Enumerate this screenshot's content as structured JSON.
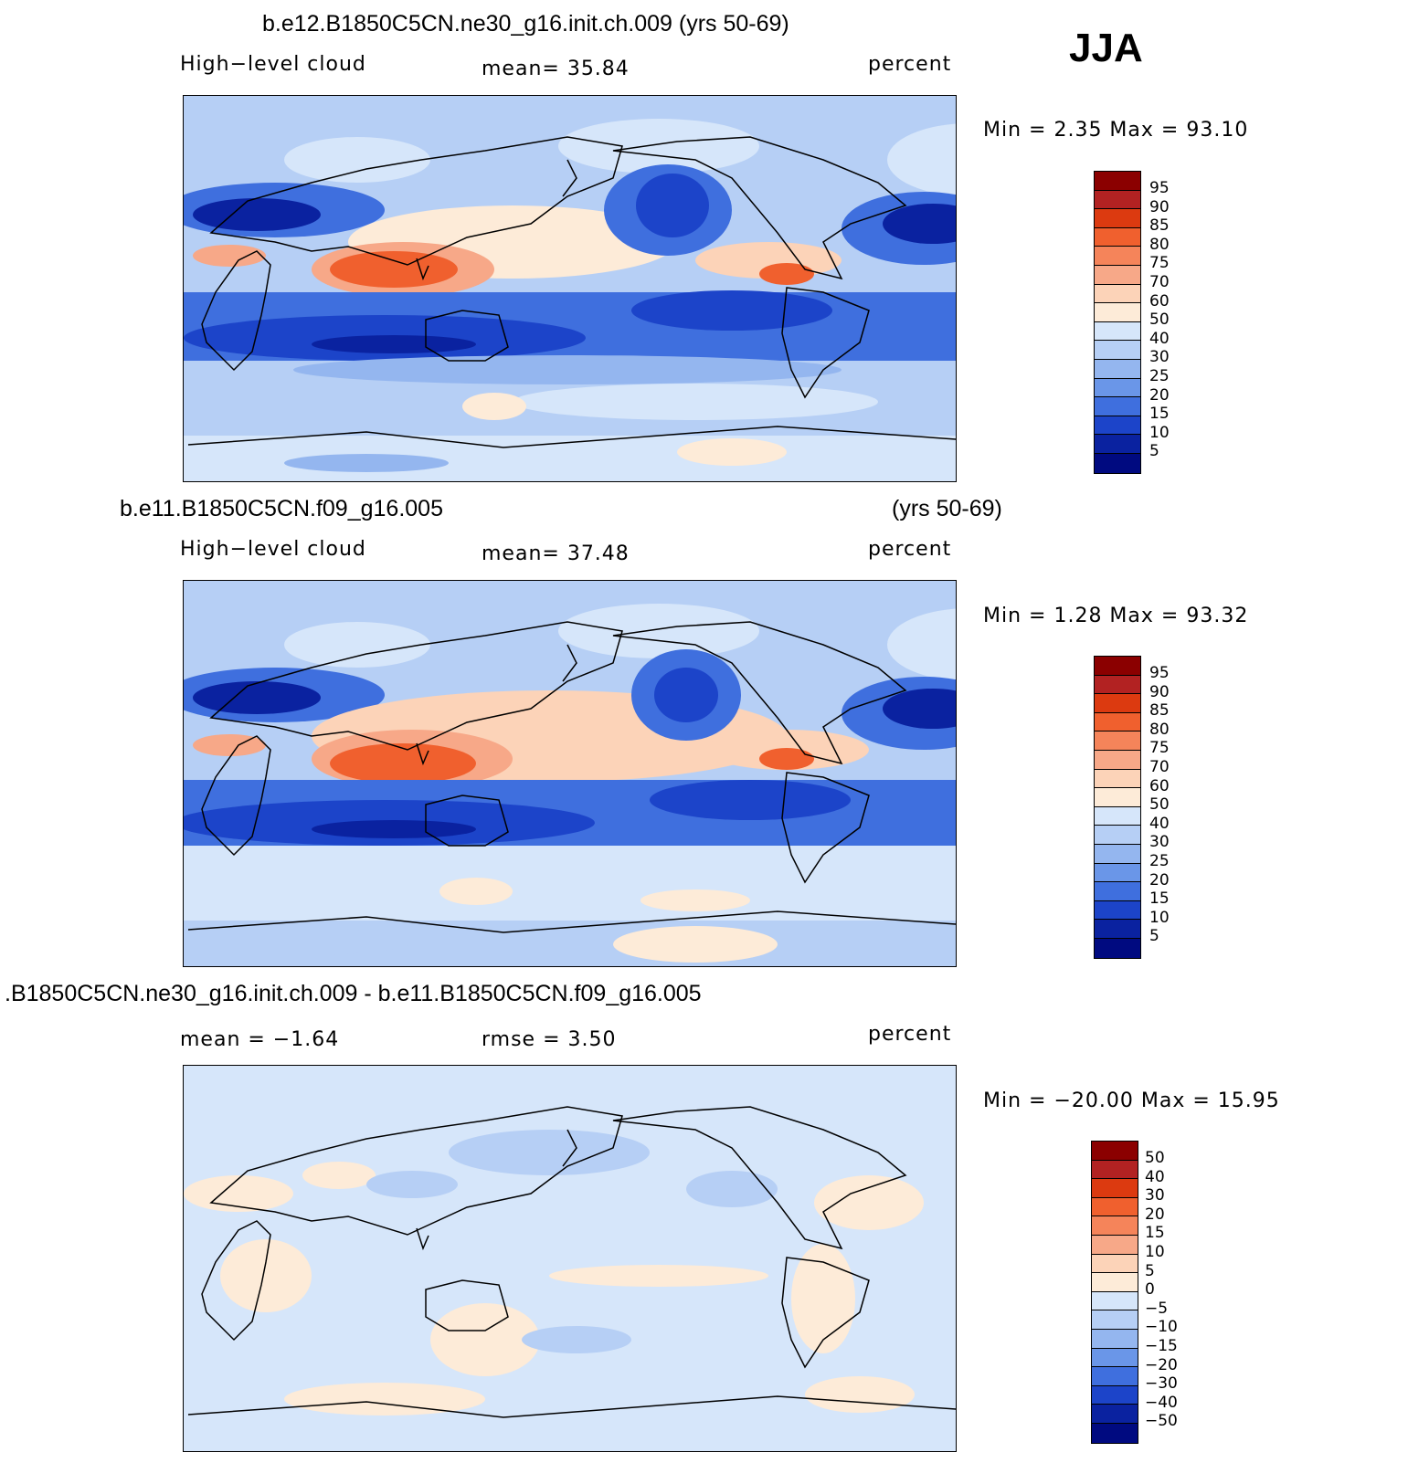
{
  "season": "JJA",
  "panels": [
    {
      "title": "b.e12.B1850C5CN.ne30_g16.init.ch.009 (yrs 50-69)",
      "left_label": "High−level cloud",
      "center_label": "mean=   35.84",
      "right_label": "percent",
      "minmax": "Min =    2.35 Max =   93.10",
      "colorbar_labels": [
        "95",
        "90",
        "85",
        "80",
        "75",
        "70",
        "60",
        "50",
        "40",
        "30",
        "25",
        "20",
        "15",
        "10",
        "5"
      ]
    },
    {
      "title_left": "b.e11.B1850C5CN.f09_g16.005",
      "title_right": "(yrs 50-69)",
      "left_label": "High−level cloud",
      "center_label": "mean=   37.48",
      "right_label": "percent",
      "minmax": "Min =    1.28 Max =   93.32",
      "colorbar_labels": [
        "95",
        "90",
        "85",
        "80",
        "75",
        "70",
        "60",
        "50",
        "40",
        "30",
        "25",
        "20",
        "15",
        "10",
        "5"
      ]
    },
    {
      "title": ".B1850C5CN.ne30_g16.init.ch.009 - b.e11.B1850C5CN.f09_g16.005",
      "left_label": "mean =   −1.64",
      "center_label": "rmse =    3.50",
      "right_label": "percent",
      "minmax": "Min = −20.00 Max =   15.95",
      "colorbar_labels": [
        "50",
        "40",
        "30",
        "20",
        "15",
        "10",
        "5",
        "0",
        "−5",
        "−10",
        "−15",
        "−20",
        "−30",
        "−40",
        "−50"
      ]
    }
  ],
  "chart_data": [
    {
      "type": "heatmap",
      "title": "b.e12.B1850C5CN.ne30_g16.init.ch.009 (yrs 50-69)",
      "variable": "High-level cloud",
      "units": "percent",
      "mean": 35.84,
      "min": 2.35,
      "max": 93.1,
      "levels": [
        5,
        10,
        15,
        20,
        25,
        30,
        40,
        50,
        60,
        70,
        75,
        80,
        85,
        90,
        95
      ]
    },
    {
      "type": "heatmap",
      "title": "b.e11.B1850C5CN.f09_g16.005 (yrs 50-69)",
      "variable": "High-level cloud",
      "units": "percent",
      "mean": 37.48,
      "min": 1.28,
      "max": 93.32,
      "levels": [
        5,
        10,
        15,
        20,
        25,
        30,
        40,
        50,
        60,
        70,
        75,
        80,
        85,
        90,
        95
      ]
    },
    {
      "type": "heatmap",
      "title": ".B1850C5CN.ne30_g16.init.ch.009 - b.e11.B1850C5CN.f09_g16.005",
      "units": "percent",
      "mean": -1.64,
      "rmse": 3.5,
      "min": -20.0,
      "max": 15.95,
      "levels": [
        -50,
        -40,
        -30,
        -20,
        -15,
        -10,
        -5,
        0,
        5,
        10,
        15,
        20,
        30,
        40,
        50
      ]
    }
  ],
  "palette": [
    "#8b0000",
    "#b22222",
    "#dc3a10",
    "#f0602e",
    "#f5845a",
    "#f7a888",
    "#fcd3b8",
    "#fdebd8",
    "#d6e6fa",
    "#b6cff5",
    "#94b6ef",
    "#6a96e8",
    "#3f6fde",
    "#1c44c9",
    "#0a22a0",
    "#000a80"
  ]
}
